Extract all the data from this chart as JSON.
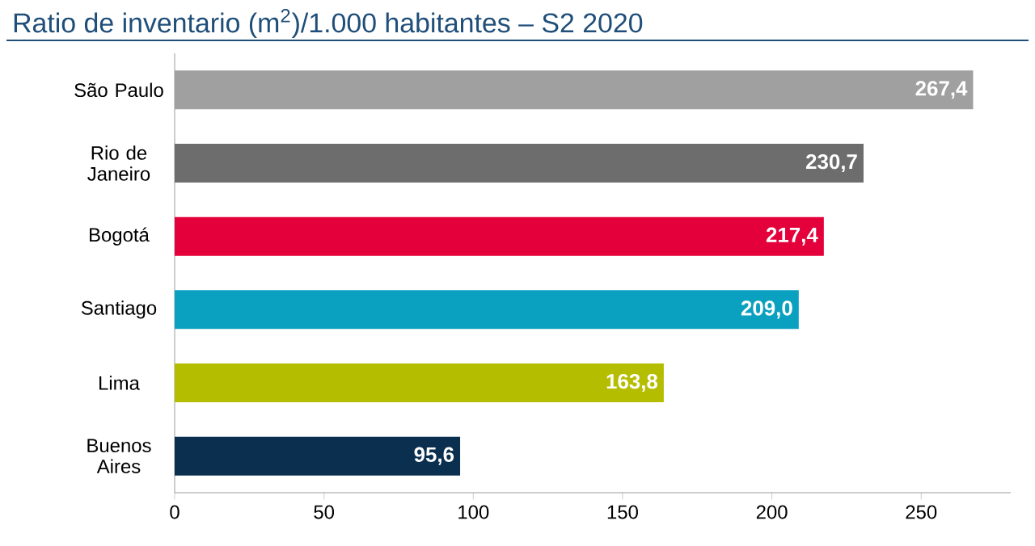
{
  "chart_data": {
    "type": "bar",
    "orientation": "horizontal",
    "title": "Ratio de inventario (m$^{2}$)/1.000 habitantes – S2 2020",
    "categories": [
      "São Paulo",
      "Rio de Janeiro",
      "Bogotá",
      "Santiago",
      "Lima",
      "Buenos Aires"
    ],
    "values": [
      267.4,
      230.7,
      217.4,
      209.0,
      163.8,
      95.6
    ],
    "value_labels": [
      "267,4",
      "230,7",
      "217,4",
      "209,0",
      "163,8",
      "95,6"
    ],
    "colors": [
      "#a0a0a0",
      "#6d6d6d",
      "#e4003a",
      "#0aa0c0",
      "#b5bd00",
      "#0b2f4f"
    ],
    "xlim": [
      0,
      280
    ],
    "xticks": [
      0,
      50,
      100,
      150,
      200,
      250
    ],
    "grid": false
  }
}
